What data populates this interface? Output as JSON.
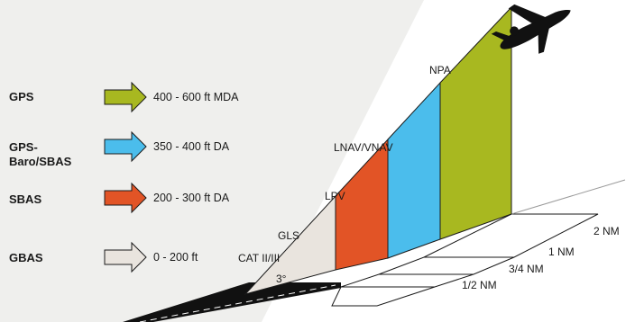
{
  "colors": {
    "background_left": "#efefed",
    "gps": "#a8b820",
    "gps_baro_sbas": "#4bbdec",
    "sbas": "#e25426",
    "gbas": "#e9e4de",
    "runway": "#111111",
    "outline": "#1a1a1a"
  },
  "systems": [
    {
      "name": "GPS",
      "minimum": "400 - 600 ft MDA",
      "color": "#a8b820"
    },
    {
      "name_line1": "GPS-",
      "name_line2": "Baro/SBAS",
      "minimum": "350 - 400 ft DA",
      "color": "#4bbdec"
    },
    {
      "name": "SBAS",
      "minimum": "200 - 300 ft DA",
      "color": "#e25426"
    },
    {
      "name": "GBAS",
      "minimum": "0 - 200 ft",
      "color": "#e9e4de"
    }
  ],
  "approach_segments": {
    "npa": "NPA",
    "lnav_vnav": "LNAV/VNAV",
    "lpv": "LPV",
    "gls": "GLS",
    "cat": "CAT II/III",
    "angle": "3°"
  },
  "distances": {
    "d2": "2 NM",
    "d1": "1 NM",
    "d34": "3/4 NM",
    "d12": "1/2 NM"
  },
  "icons": {
    "aircraft": "airplane-icon",
    "arrow": "arrow-right-icon"
  }
}
